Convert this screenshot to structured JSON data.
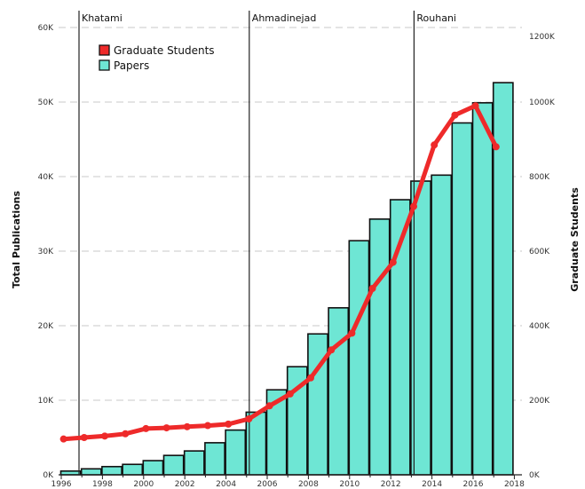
{
  "chart_data": {
    "type": "bar+line",
    "x": [
      1996,
      1997,
      1998,
      1999,
      2000,
      2001,
      2002,
      2003,
      2004,
      2005,
      2006,
      2007,
      2008,
      2009,
      2010,
      2011,
      2012,
      2013,
      2014,
      2015,
      2016,
      2017,
      2018
    ],
    "x_tick_labels": [
      "1996",
      "1998",
      "2000",
      "2002",
      "2004",
      "2006",
      "2008",
      "2010",
      "2012",
      "2014",
      "2016",
      "2018"
    ],
    "series": [
      {
        "name": "Papers",
        "kind": "bar",
        "axis": "left",
        "color": "#6ee6d4",
        "values": [
          500,
          800,
          1100,
          1400,
          1900,
          2600,
          3200,
          4300,
          6000,
          8400,
          11400,
          14500,
          18900,
          22400,
          31400,
          34300,
          36900,
          39400,
          40200,
          47200,
          49900,
          52600,
          0
        ]
      },
      {
        "name": "Graduate Students",
        "kind": "line",
        "axis": "right",
        "color": "#ee2a2a",
        "values": [
          96000,
          100000,
          104000,
          110000,
          124000,
          126000,
          129000,
          132000,
          136000,
          150000,
          185000,
          217000,
          260000,
          335000,
          380000,
          500000,
          570000,
          720000,
          885000,
          965000,
          990000,
          880000,
          null
        ]
      }
    ],
    "bar_years": [
      1996,
      1997,
      1998,
      1999,
      2000,
      2001,
      2002,
      2003,
      2004,
      2005,
      2006,
      2007,
      2008,
      2009,
      2010,
      2011,
      2012,
      2013,
      2014,
      2015,
      2016,
      2017
    ],
    "line_years": [
      1996,
      1997,
      1998,
      1999,
      2000,
      2001,
      2002,
      2003,
      2004,
      2005,
      2006,
      2007,
      2008,
      2009,
      2010,
      2011,
      2012,
      2013,
      2014,
      2015,
      2016,
      2017
    ],
    "ylabel": "Total Publications",
    "y2label": "Graduate Students",
    "ylim": [
      0,
      60000
    ],
    "y2lim": [
      0,
      1200000
    ],
    "y_tick_labels": [
      "0K",
      "10K",
      "20K",
      "30K",
      "40K",
      "50K",
      "60K"
    ],
    "y2_tick_labels": [
      "0K",
      "200K",
      "400K",
      "600K",
      "800K",
      "1000K",
      "1200K"
    ],
    "eras": [
      {
        "label": "Khatami",
        "year": 1996
      },
      {
        "label": "Ahmadinejad",
        "year": 2005
      },
      {
        "label": "Rouhani",
        "year": 2013
      }
    ],
    "legend": {
      "placement": "top-left",
      "entries": [
        "Graduate Students",
        "Papers"
      ]
    },
    "grid": true
  }
}
